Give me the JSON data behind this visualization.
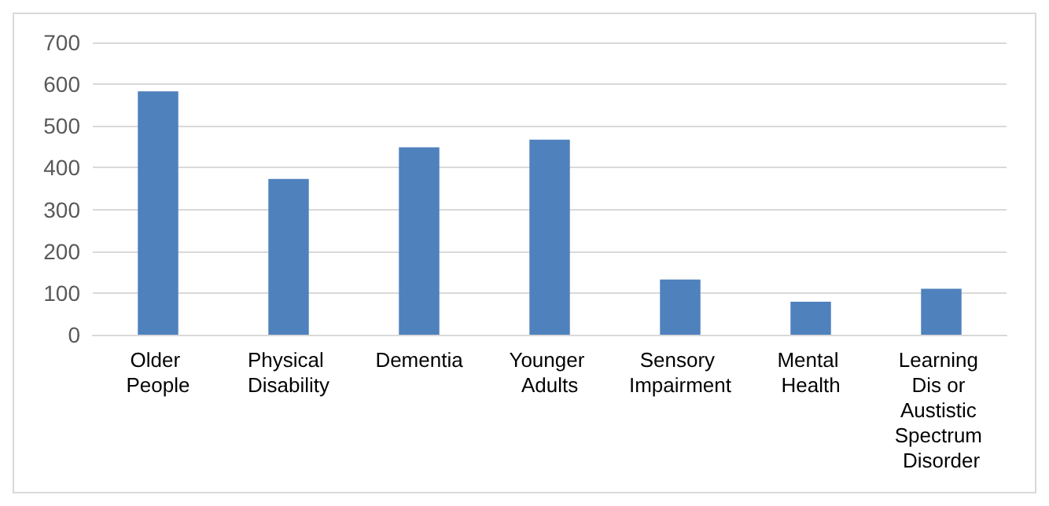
{
  "chart_data": {
    "type": "bar",
    "categories": [
      "Older People",
      "Physical Disability",
      "Dementia",
      "Younger Adults",
      "Sensory Impairment",
      "Mental Health",
      "Learning Dis or Austistic Spectrum Disorder"
    ],
    "values": [
      583,
      373,
      449,
      467,
      132,
      79,
      110
    ],
    "color": "#4f81bd",
    "ylim": [
      0,
      700
    ],
    "yticks": [
      0,
      100,
      200,
      300,
      400,
      500,
      600,
      700
    ],
    "grid": "y"
  }
}
